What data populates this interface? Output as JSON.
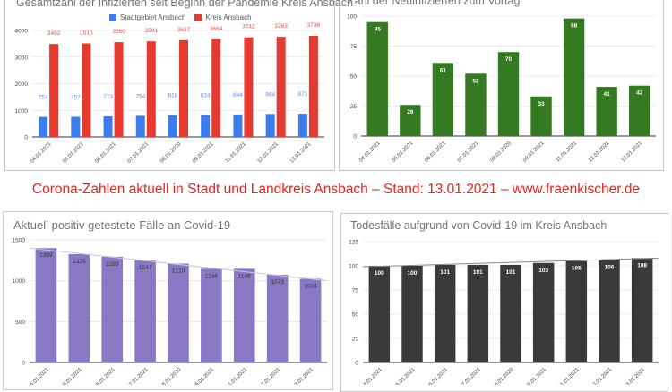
{
  "headline": "Corona-Zahlen aktuell in Stadt und Landkreis Ansbach – Stand: 13.01.2021 – www.fraenkischer.de",
  "chart_data": [
    {
      "type": "bar",
      "title": "Gesamtzahl der Infizierten seit Beginn der Pandemie Kreis Ansbach",
      "categories": [
        "04.01.2021",
        "05.01.2021",
        "06.01.2021",
        "07.01.2021",
        "08.01.2020",
        "09.01.2021",
        "11.01.2021",
        "12.01.2021",
        "13.01.2021"
      ],
      "series": [
        {
          "name": "Stadtgebiet Ansbach",
          "color": "#3b7ded",
          "values": [
            754,
            757,
            773,
            794,
            818,
            824,
            844,
            864,
            871
          ]
        },
        {
          "name": "Kreis Ansbach",
          "color": "#e53a2f",
          "values": [
            3492,
            3515,
            3560,
            3591,
            3637,
            3664,
            3742,
            3763,
            3798
          ]
        }
      ],
      "ylim": [
        0,
        4000
      ],
      "yticks": [
        0,
        1000,
        2000,
        3000,
        4000
      ],
      "legend": "top",
      "grid": true
    },
    {
      "type": "bar",
      "title": "Zahl der Neuinfizierten zum Vortag",
      "categories": [
        "04.01.2021",
        "05.01.2021",
        "06.01.2021",
        "07.01.2021",
        "08.01.2020",
        "09.01.2021",
        "11.01.2021",
        "12.01.2021",
        "13.01.2021"
      ],
      "series": [
        {
          "name": "Neuinfizierte",
          "color": "#347a20",
          "values": [
            95,
            26,
            61,
            52,
            70,
            33,
            98,
            41,
            42
          ]
        }
      ],
      "ylim": [
        0,
        100
      ],
      "yticks": [
        0,
        25,
        50,
        75,
        100
      ],
      "grid": true
    },
    {
      "type": "bar",
      "title": "Aktuell positiv getestete Fälle an Covid-19",
      "categories": [
        "04.01.2021",
        "05.01.2021",
        "06.01.2021",
        "07.01.2021",
        "08.01.2020",
        "09.01.2021",
        "11.01.2021",
        "12.01.2021",
        "13.01.2021"
      ],
      "series": [
        {
          "name": "Aktuell positiv",
          "color": "#8b78c4",
          "values": [
            1399,
            1325,
            1293,
            1247,
            1210,
            1146,
            1146,
            1073,
            1024
          ]
        }
      ],
      "trendline": [
        1400,
        1000
      ],
      "ylim": [
        0,
        1500
      ],
      "yticks": [
        0,
        500,
        1000,
        1500
      ],
      "grid": true
    },
    {
      "type": "bar",
      "title": "Todesfälle aufgrund von Covid-19 im Kreis Ansbach",
      "categories": [
        "04.01.2021",
        "05.01.2021",
        "06.01.2021",
        "07.01.2021",
        "08.01.2020",
        "09.01.2021",
        "11.01.2021",
        "12.01.2021",
        "13.01.2021"
      ],
      "series": [
        {
          "name": "Todesfälle",
          "color": "#3a3a3a",
          "values": [
            100,
            100,
            101,
            101,
            101,
            103,
            105,
            106,
            108
          ]
        }
      ],
      "trendline": [
        99,
        108
      ],
      "ylim": [
        0,
        125
      ],
      "yticks": [
        0,
        25,
        50,
        75,
        100,
        125
      ],
      "grid": true
    }
  ]
}
